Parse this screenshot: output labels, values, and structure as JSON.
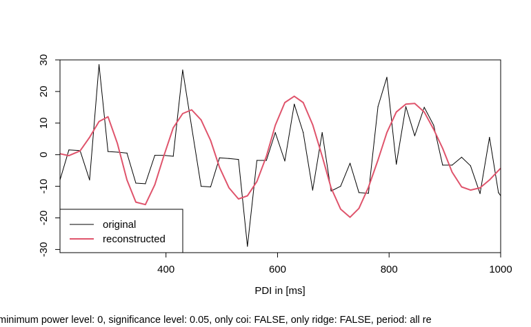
{
  "chart_data": {
    "type": "line",
    "xlabel": "PDI in [ms]",
    "ylabel": "",
    "xlim": [
      210,
      1000
    ],
    "ylim": [
      -31,
      30
    ],
    "x_ticks": [
      400,
      600,
      800,
      1000
    ],
    "y_ticks": [
      -30,
      -20,
      -10,
      0,
      10,
      20,
      30
    ],
    "x_tick_labels": [
      "400",
      "600",
      "800",
      "1000"
    ],
    "y_tick_labels": [
      "-30",
      "-20",
      "-10",
      "0",
      "10",
      "20",
      "30"
    ],
    "grid": false,
    "legend_position": "bottom-left",
    "caption": "minimum power level: 0, significance level: 0.05, only coi: FALSE, only ridge: FALSE, period: all re",
    "series": [
      {
        "name": "original",
        "color": "#000000",
        "x": [
          210,
          226,
          246,
          263,
          280,
          296,
          313,
          330,
          346,
          363,
          380,
          396,
          413,
          430,
          446,
          463,
          480,
          496,
          513,
          530,
          546,
          563,
          580,
          596,
          613,
          630,
          646,
          663,
          680,
          696,
          713,
          730,
          746,
          763,
          780,
          796,
          813,
          830,
          846,
          863,
          880,
          896,
          913,
          930,
          946,
          963,
          980,
          996,
          1000
        ],
        "y": [
          -8,
          1.5,
          1.3,
          -8,
          28.5,
          1,
          0.8,
          0.5,
          -9,
          -9.2,
          -0.2,
          -0.2,
          -0.5,
          26.8,
          8.8,
          -10,
          -10.2,
          -1,
          -1.2,
          -1.5,
          -29,
          -1.8,
          -1.8,
          7,
          -2,
          16,
          7,
          -11.2,
          7,
          -11.5,
          -10,
          -2.7,
          -12,
          -12.2,
          15.2,
          24.5,
          -3,
          15.2,
          6,
          15,
          9.3,
          -3.3,
          -3.3,
          -0.8,
          -3.5,
          -12.3,
          5.5,
          -12,
          -13
        ]
      },
      {
        "name": "reconstructed",
        "color": "#DF536B",
        "x": [
          210,
          226,
          246,
          263,
          280,
          296,
          313,
          330,
          346,
          363,
          380,
          396,
          413,
          430,
          446,
          463,
          480,
          496,
          513,
          530,
          546,
          563,
          580,
          596,
          613,
          630,
          646,
          663,
          680,
          696,
          713,
          730,
          746,
          763,
          780,
          796,
          813,
          830,
          846,
          863,
          880,
          896,
          913,
          930,
          946,
          963,
          980,
          996,
          1000
        ],
        "y": [
          0.3,
          -0.3,
          1.2,
          5.5,
          10.5,
          12,
          3.5,
          -8,
          -15,
          -15.8,
          -9.5,
          -0.5,
          8.5,
          13,
          14.2,
          11,
          4.5,
          -4,
          -10.5,
          -14,
          -13,
          -8.5,
          -0.5,
          9.3,
          16.5,
          18.5,
          16.5,
          9.5,
          -0.5,
          -10.5,
          -17.2,
          -19.8,
          -17,
          -10.3,
          -1.7,
          7,
          13.5,
          16,
          16.2,
          13.5,
          8,
          2,
          -5.5,
          -10.2,
          -11.2,
          -10.5,
          -8,
          -5,
          -4.3
        ]
      }
    ]
  }
}
